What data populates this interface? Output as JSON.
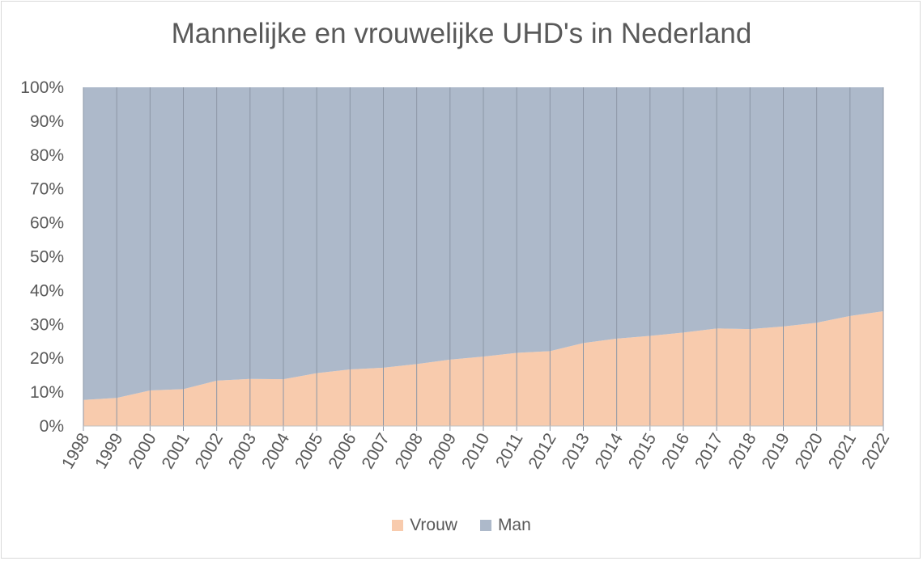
{
  "chart_data": {
    "type": "area",
    "stacked": "100%",
    "title": "Mannelijke en vrouwelijke UHD's in Nederland",
    "xlabel": "",
    "ylabel": "",
    "x": [
      "1998",
      "1999",
      "2000",
      "2001",
      "2002",
      "2003",
      "2004",
      "2005",
      "2006",
      "2007",
      "2008",
      "2009",
      "2010",
      "2011",
      "2012",
      "2013",
      "2014",
      "2015",
      "2016",
      "2017",
      "2018",
      "2019",
      "2020",
      "2021",
      "2022"
    ],
    "y_ticks": [
      "0%",
      "10%",
      "20%",
      "30%",
      "40%",
      "50%",
      "60%",
      "70%",
      "80%",
      "90%",
      "100%"
    ],
    "ylim": [
      0,
      100
    ],
    "grid": "vertical",
    "legend_position": "bottom",
    "series": [
      {
        "name": "Vrouw",
        "color": "#f8cbad",
        "values": [
          7.7,
          8.3,
          10.5,
          10.9,
          13.4,
          13.9,
          13.8,
          15.6,
          16.7,
          17.2,
          18.3,
          19.6,
          20.5,
          21.6,
          22.1,
          24.5,
          25.8,
          26.6,
          27.6,
          28.8,
          28.6,
          29.4,
          30.5,
          32.5,
          33.9
        ]
      },
      {
        "name": "Man",
        "color": "#adb9ca",
        "values": [
          92.3,
          91.7,
          89.5,
          89.1,
          86.6,
          86.1,
          86.2,
          84.4,
          83.3,
          82.8,
          81.7,
          80.4,
          79.5,
          78.4,
          77.9,
          75.5,
          74.2,
          73.4,
          72.4,
          71.2,
          71.4,
          70.6,
          69.5,
          67.5,
          66.1
        ]
      }
    ]
  }
}
